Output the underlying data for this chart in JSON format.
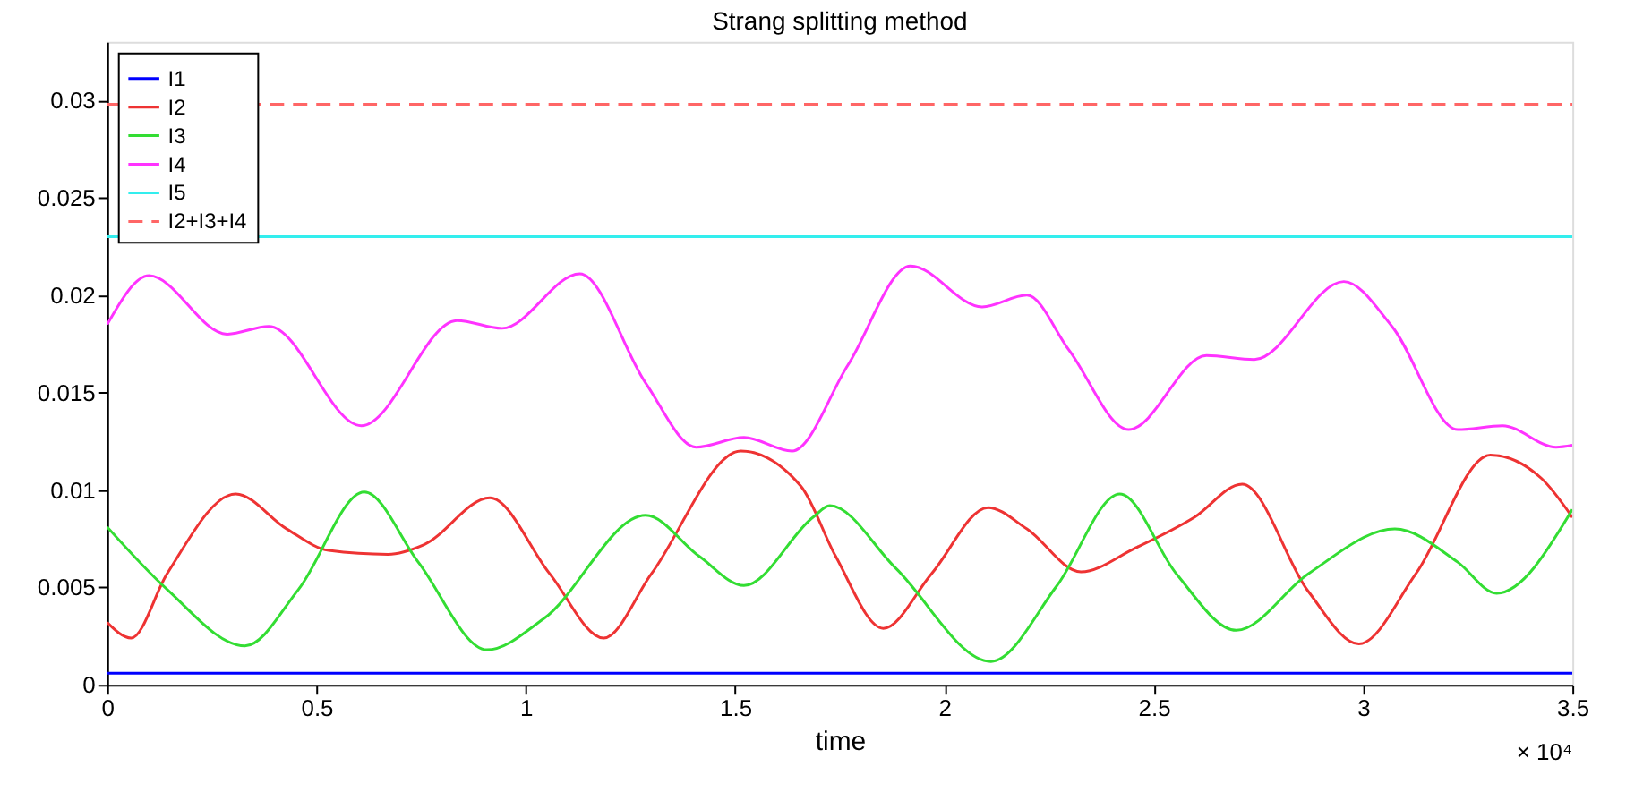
{
  "chart_data": {
    "type": "line",
    "title": "Strang splitting method",
    "xlabel": "time",
    "annotations": [
      "× 10⁴"
    ],
    "xlim": [
      0,
      3.5
    ],
    "ylim": [
      0,
      0.033
    ],
    "xticks": [
      0,
      0.5,
      1,
      1.5,
      2,
      2.5,
      3,
      3.5
    ],
    "yticks": [
      0,
      0.005,
      0.01,
      0.015,
      0.02,
      0.025,
      0.03
    ],
    "grid": false,
    "legend": "top left",
    "series": [
      {
        "name": "I1",
        "color": "#0000ff",
        "x": [
          0,
          3.5
        ],
        "values": [
          0.0006,
          0.0006
        ]
      },
      {
        "name": "I2",
        "color": "#ee3333",
        "x": [
          0,
          0.057,
          0.143,
          0.307,
          0.429,
          0.529,
          0.671,
          0.757,
          0.914,
          1.057,
          1.186,
          1.3,
          1.514,
          1.657,
          1.74,
          1.854,
          1.969,
          2.104,
          2.197,
          2.326,
          2.454,
          2.597,
          2.711,
          2.869,
          2.99,
          3.126,
          3.304,
          3.426,
          3.5
        ],
        "values": [
          0.0032,
          0.0024,
          0.0057,
          0.0098,
          0.008,
          0.0069,
          0.0067,
          0.0072,
          0.0096,
          0.0057,
          0.0024,
          0.0057,
          0.012,
          0.0102,
          0.0066,
          0.0029,
          0.0057,
          0.0091,
          0.008,
          0.0058,
          0.007,
          0.0086,
          0.0103,
          0.0048,
          0.0021,
          0.0057,
          0.0118,
          0.0106,
          0.0086
        ]
      },
      {
        "name": "I3",
        "color": "#33dd33",
        "x": [
          0,
          0.143,
          0.329,
          0.457,
          0.614,
          0.743,
          0.907,
          1.043,
          1.286,
          1.414,
          1.521,
          1.686,
          1.726,
          1.883,
          2.111,
          2.269,
          2.419,
          2.554,
          2.697,
          2.869,
          3.076,
          3.226,
          3.319,
          3.5
        ],
        "values": [
          0.0081,
          0.0049,
          0.002,
          0.0049,
          0.0099,
          0.0063,
          0.0018,
          0.0034,
          0.0087,
          0.0066,
          0.0051,
          0.0086,
          0.0092,
          0.006,
          0.0012,
          0.0051,
          0.0098,
          0.0057,
          0.0028,
          0.0057,
          0.008,
          0.0063,
          0.0047,
          0.009
        ]
      },
      {
        "name": "I4",
        "color": "#ff33ff",
        "x": [
          0,
          0.1,
          0.286,
          0.386,
          0.607,
          0.836,
          0.943,
          1.129,
          1.286,
          1.407,
          1.521,
          1.636,
          1.769,
          1.919,
          2.09,
          2.197,
          2.297,
          2.44,
          2.626,
          2.74,
          2.954,
          3.069,
          3.226,
          3.333,
          3.461,
          3.5
        ],
        "values": [
          0.0185,
          0.021,
          0.018,
          0.0184,
          0.0133,
          0.0187,
          0.0183,
          0.0211,
          0.0155,
          0.0122,
          0.0127,
          0.012,
          0.0164,
          0.0215,
          0.0194,
          0.02,
          0.0172,
          0.0131,
          0.0169,
          0.0167,
          0.0207,
          0.0184,
          0.0131,
          0.0133,
          0.0122,
          0.0123
        ]
      },
      {
        "name": "I5",
        "color": "#33eeee",
        "x": [
          0,
          3.5
        ],
        "values": [
          0.023,
          0.023
        ]
      },
      {
        "name": "I2+I3+I4",
        "color": "#ff6666",
        "line_style": "dashed",
        "x": [
          0,
          3.5
        ],
        "values": [
          0.0298,
          0.0298
        ]
      }
    ]
  }
}
